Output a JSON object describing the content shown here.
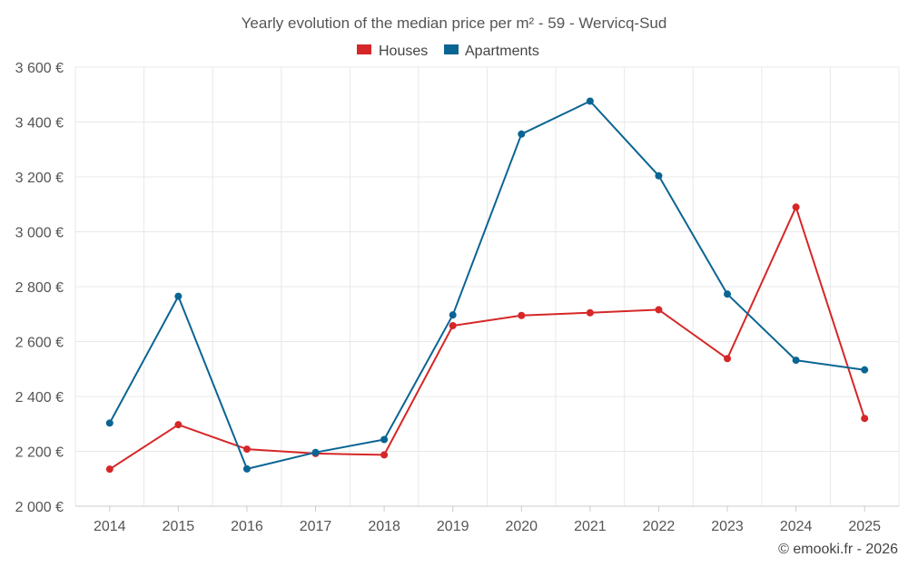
{
  "chart_data": {
    "type": "line",
    "title": "Yearly evolution of the median price per m² - 59 - Wervicq-Sud",
    "categories": [
      "2014",
      "2015",
      "2016",
      "2017",
      "2018",
      "2019",
      "2020",
      "2021",
      "2022",
      "2023",
      "2024",
      "2025"
    ],
    "series": [
      {
        "name": "Houses",
        "color": "#d62728",
        "values": [
          2135,
          2297,
          2208,
          2192,
          2187,
          2658,
          2695,
          2705,
          2716,
          2538,
          3090,
          2320
        ]
      },
      {
        "name": "Apartments",
        "color": "#0b6593",
        "values": [
          2303,
          2765,
          2136,
          2196,
          2243,
          2697,
          3356,
          3476,
          3204,
          2773,
          2532,
          2497
        ]
      }
    ],
    "ylim": [
      2000,
      3600
    ],
    "yticks": [
      2000,
      2200,
      2400,
      2600,
      2800,
      3000,
      3200,
      3400,
      3600
    ],
    "ytick_labels": [
      "2 000 €",
      "2 200 €",
      "2 400 €",
      "2 600 €",
      "2 800 €",
      "3 000 €",
      "3 200 €",
      "3 400 €",
      "3 600 €"
    ],
    "xlabel": "",
    "ylabel": "",
    "grid": true,
    "legend_position": "top-center"
  },
  "credit": "© emooki.fr - 2026"
}
